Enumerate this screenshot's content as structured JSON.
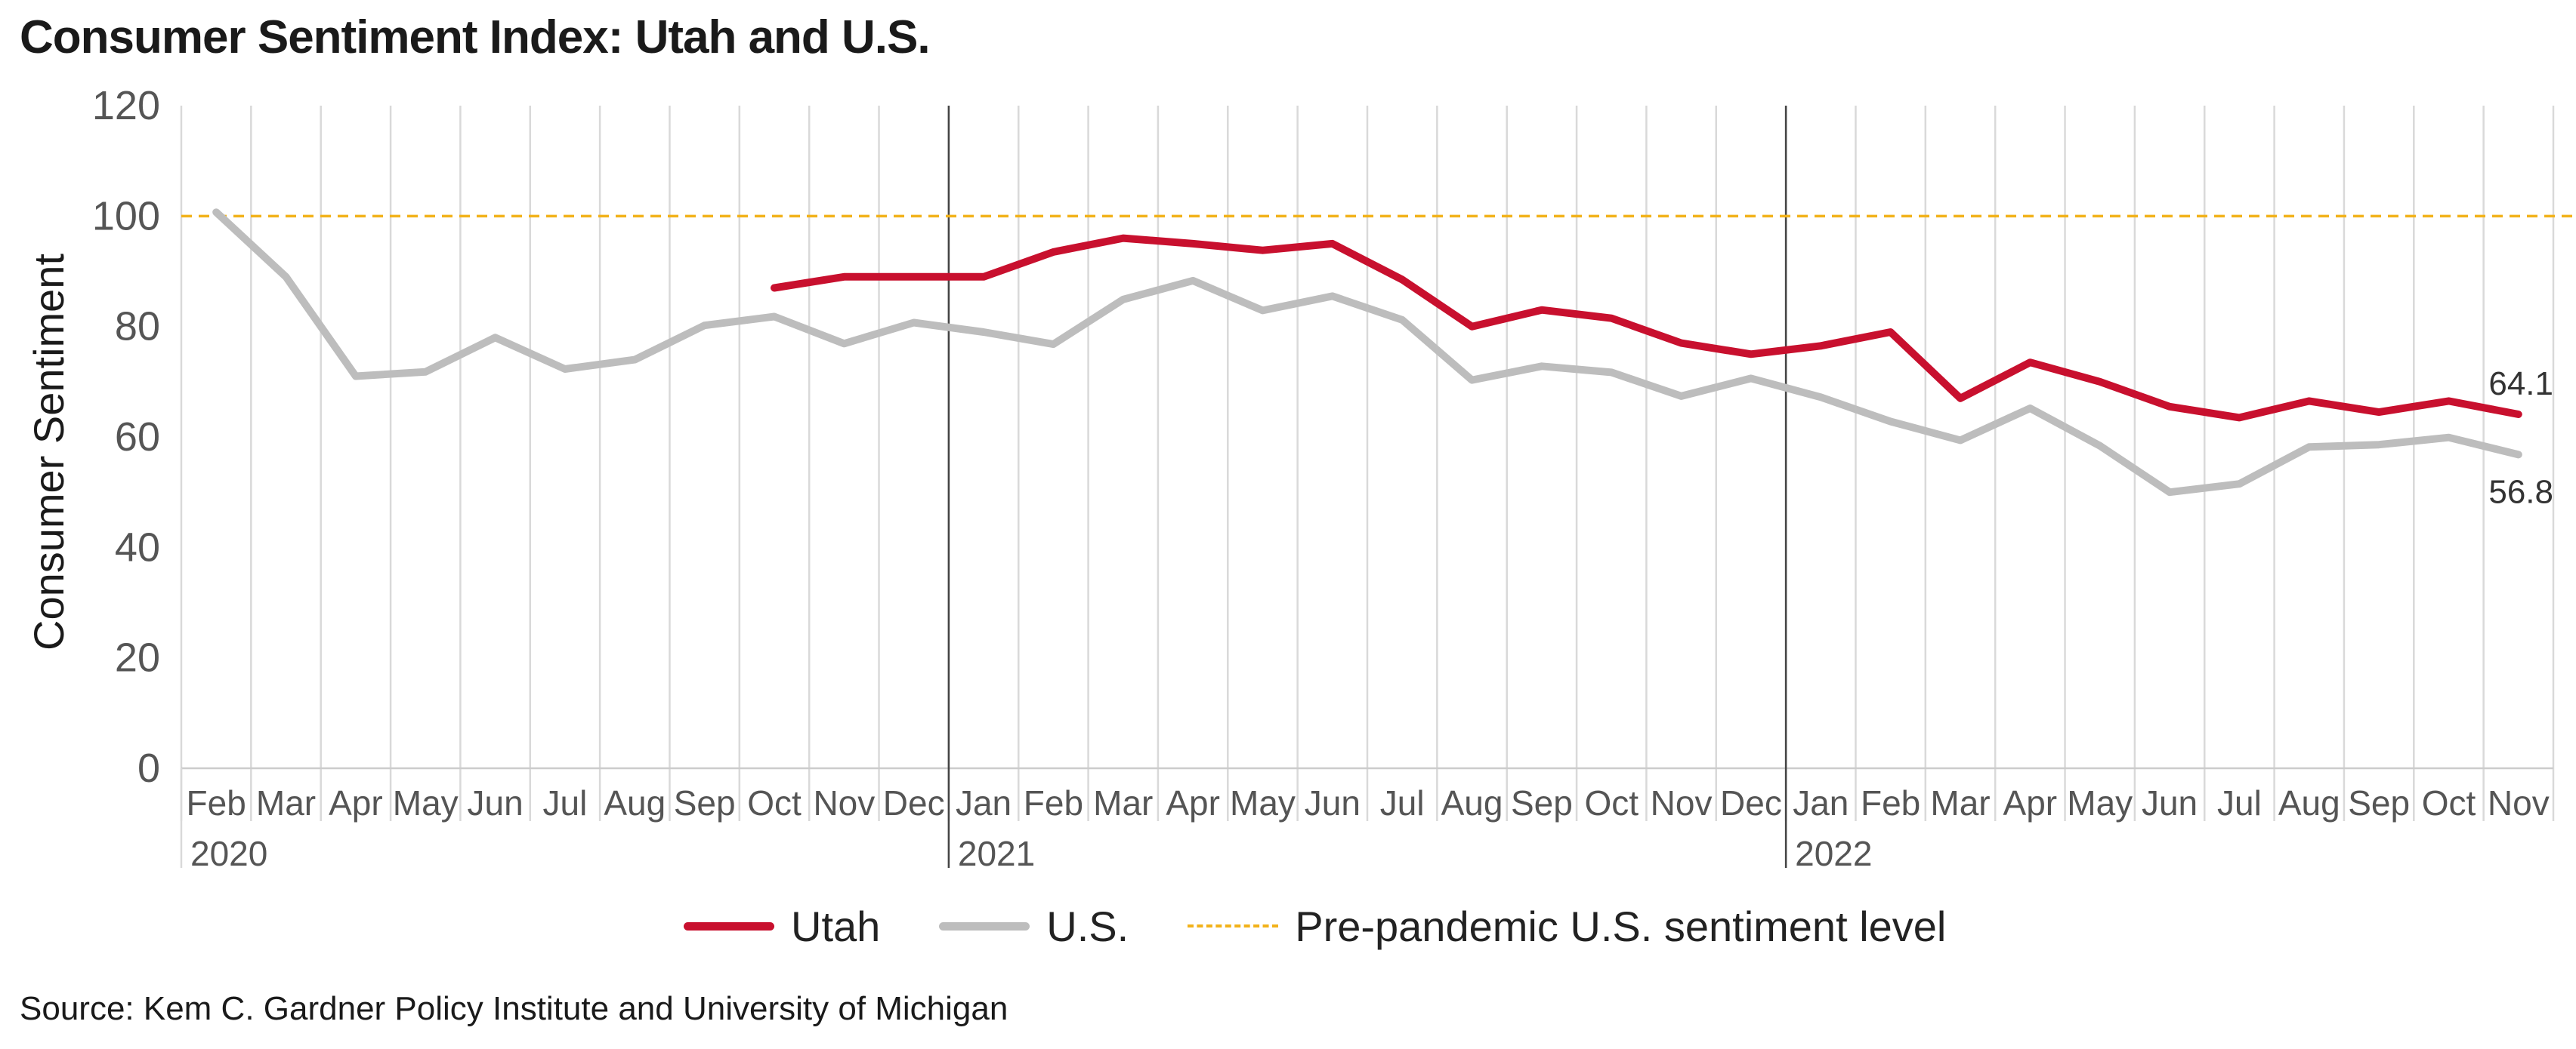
{
  "title": "Consumer Sentiment Index: Utah and U.S.",
  "source": "Source: Kem C. Gardner Policy Institute and University of Michigan",
  "colors": {
    "utah": "#c8102e",
    "us": "#bdbdbd",
    "reference": "#f2b21a",
    "grid": "#d9d9d9"
  },
  "chart_data": {
    "type": "line",
    "ylabel": "Consumer Sentiment",
    "ylim": [
      0,
      120
    ],
    "yticks": [
      0,
      20,
      40,
      60,
      80,
      100,
      120
    ],
    "grid": "vertical",
    "legend_position": "bottom",
    "categories": [
      "Feb",
      "Mar",
      "Apr",
      "May",
      "Jun",
      "Jul",
      "Aug",
      "Sep",
      "Oct",
      "Nov",
      "Dec",
      "Jan",
      "Feb",
      "Mar",
      "Apr",
      "May",
      "Jun",
      "Jul",
      "Aug",
      "Sep",
      "Oct",
      "Nov",
      "Dec",
      "Jan",
      "Feb",
      "Mar",
      "Apr",
      "May",
      "Jun",
      "Jul",
      "Aug",
      "Sep",
      "Oct",
      "Nov"
    ],
    "year_labels": [
      {
        "label": "2020",
        "index": 0
      },
      {
        "label": "2021",
        "index": 11
      },
      {
        "label": "2022",
        "index": 23
      }
    ],
    "series": [
      {
        "name": "Utah",
        "color": "#c8102e",
        "values": [
          null,
          null,
          null,
          null,
          null,
          null,
          null,
          null,
          87,
          89,
          89,
          89,
          93.5,
          96,
          95,
          93.8,
          95,
          88.5,
          80,
          83,
          81.5,
          77,
          75,
          76.5,
          79,
          67,
          73.5,
          70,
          65.5,
          63.5,
          66.5,
          64.5,
          66.5,
          64.1
        ]
      },
      {
        "name": "U.S.",
        "color": "#bdbdbd",
        "values": [
          100.7,
          89,
          71,
          71.8,
          78,
          72.3,
          74,
          80.2,
          81.8,
          76.9,
          80.7,
          79,
          76.8,
          84.9,
          88.3,
          82.9,
          85.5,
          81.2,
          70.3,
          72.8,
          71.7,
          67.4,
          70.6,
          67.2,
          62.8,
          59.4,
          65.2,
          58.4,
          50,
          51.5,
          58.2,
          58.6,
          59.9,
          56.8
        ]
      }
    ],
    "reference_line": {
      "name": "Pre-pandemic U.S. sentiment level",
      "value": 100,
      "color": "#f2b21a"
    },
    "annotations": [
      {
        "series": "Utah",
        "index": 33,
        "text": "64.1"
      },
      {
        "series": "U.S.",
        "index": 33,
        "text": "56.8"
      }
    ]
  },
  "legend": {
    "utah": "Utah",
    "us": "U.S.",
    "reference": "Pre-pandemic U.S. sentiment level"
  }
}
